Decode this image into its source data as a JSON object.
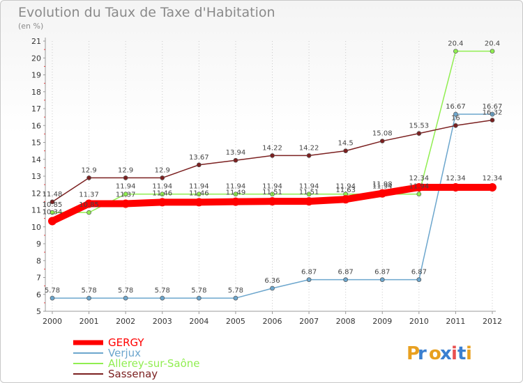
{
  "chart_data": {
    "type": "line",
    "title": "Evolution du Taux de Taxe d'Habitation",
    "subtitle": "(en %)",
    "x": [
      "2000",
      "2001",
      "2002",
      "2003",
      "2004",
      "2005",
      "2006",
      "2007",
      "2008",
      "2009",
      "2010",
      "2011",
      "2012"
    ],
    "ylim": [
      5,
      21
    ],
    "yticks": [
      5,
      6,
      7,
      8,
      9,
      10,
      11,
      12,
      13,
      14,
      15,
      16,
      17,
      18,
      19,
      20,
      21
    ],
    "grid": "vertical dotted",
    "legend_position": "bottom-left",
    "series": [
      {
        "name": "GERGY",
        "color": "#ff0000",
        "values": [
          10.34,
          11.37,
          11.37,
          11.46,
          11.46,
          11.49,
          11.51,
          11.51,
          11.63,
          11.98,
          12.34,
          12.34,
          12.34
        ]
      },
      {
        "name": "Verjux",
        "color": "#6ca6cd",
        "values": [
          5.78,
          5.78,
          5.78,
          5.78,
          5.78,
          5.78,
          6.36,
          6.87,
          6.87,
          6.87,
          6.87,
          16.67,
          16.67
        ]
      },
      {
        "name": "Allerey-sur-Saône",
        "color": "#90ee50",
        "values": [
          10.85,
          10.85,
          11.94,
          11.94,
          11.94,
          11.94,
          11.94,
          11.94,
          11.94,
          11.94,
          11.94,
          20.4,
          20.4
        ]
      },
      {
        "name": "Sassenay",
        "color": "#7b2020",
        "values": [
          11.48,
          12.9,
          12.9,
          12.9,
          13.67,
          13.94,
          14.22,
          14.22,
          14.5,
          15.08,
          15.53,
          16,
          16.32
        ]
      }
    ]
  },
  "logo": {
    "text": "Proxiti",
    "letters": [
      "P",
      "r",
      "o",
      "x",
      "i",
      "t",
      "i"
    ],
    "colors": [
      "#e8a020",
      "#3a7fd0",
      "#e8a020",
      "#3a7fd0",
      "#e85050",
      "#3a7fd0",
      "#e8a020"
    ]
  }
}
